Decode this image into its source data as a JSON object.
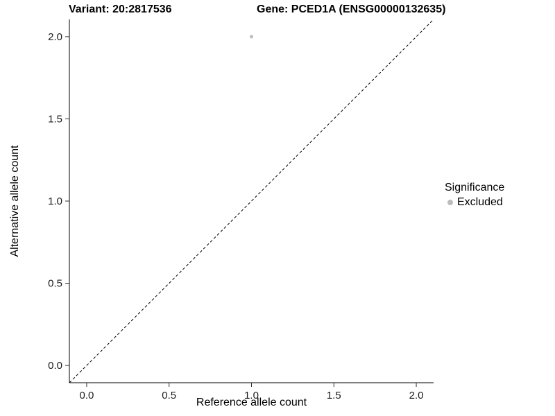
{
  "chart_data": {
    "type": "scatter",
    "title_left": "Variant: 20:2817536",
    "title_right": "Gene: PCED1A (ENSG00000132635)",
    "xlabel": "Reference allele count",
    "ylabel": "Alternative allele count",
    "xlim": [
      -0.105,
      2.105
    ],
    "ylim": [
      -0.105,
      2.105
    ],
    "xticks": [
      0.0,
      0.5,
      1.0,
      1.5,
      2.0
    ],
    "yticks": [
      0.0,
      0.5,
      1.0,
      1.5,
      2.0
    ],
    "grid": false,
    "axis_color": "#000000",
    "tick_color": "#333333",
    "reference_line": {
      "style": "dashed",
      "color": "#000000",
      "from": [
        -0.105,
        -0.105
      ],
      "to": [
        2.105,
        2.105
      ]
    },
    "series": [
      {
        "name": "Excluded",
        "color": "#bdbdbd",
        "point_radius": 2.5,
        "points": [
          [
            1.0,
            2.0
          ]
        ]
      }
    ],
    "legend": {
      "title": "Significance",
      "position": "right",
      "entries": [
        {
          "label": "Excluded",
          "color": "#bdbdbd",
          "marker": "circle"
        }
      ]
    }
  }
}
